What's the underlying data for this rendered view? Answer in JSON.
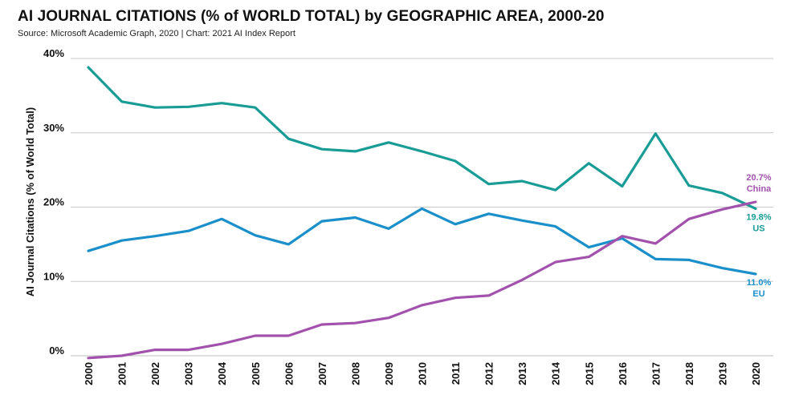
{
  "chart_data": {
    "type": "line",
    "title": "AI JOURNAL CITATIONS (% of WORLD TOTAL) by GEOGRAPHIC AREA, 2000-20",
    "subtitle": "Source: Microsoft Academic Graph, 2020 | Chart: 2021 AI Index Report",
    "xlabel": "",
    "ylabel": "AI Journal Citations (% of World Total)",
    "ylim": [
      0,
      40
    ],
    "yticks": [
      "0%",
      "10%",
      "20%",
      "30%",
      "40%"
    ],
    "grid": true,
    "categories": [
      "2000",
      "2001",
      "2002",
      "2003",
      "2004",
      "2005",
      "2006",
      "2007",
      "2008",
      "2009",
      "2010",
      "2011",
      "2012",
      "2013",
      "2014",
      "2015",
      "2016",
      "2017",
      "2018",
      "2019",
      "2020"
    ],
    "series": [
      {
        "name": "US",
        "color": "#1a9c96",
        "end_value_label": "19.8%",
        "values": [
          38.8,
          34.2,
          33.4,
          33.5,
          34.0,
          33.4,
          29.2,
          27.8,
          27.5,
          28.7,
          27.5,
          26.2,
          23.1,
          23.5,
          22.3,
          25.9,
          22.8,
          29.9,
          22.9,
          21.9,
          19.8
        ]
      },
      {
        "name": "EU",
        "color": "#1a8fca",
        "end_value_label": "11.0%",
        "values": [
          14.1,
          15.5,
          16.1,
          16.8,
          18.4,
          16.2,
          15.0,
          18.1,
          18.6,
          17.1,
          19.8,
          17.7,
          19.1,
          18.2,
          17.4,
          14.6,
          15.8,
          13.0,
          12.9,
          11.8,
          11.0
        ]
      },
      {
        "name": "China",
        "color": "#a252ad",
        "end_value_label": "20.7%",
        "values": [
          -0.3,
          0.0,
          0.8,
          0.8,
          1.6,
          2.7,
          2.7,
          4.2,
          4.4,
          5.1,
          6.8,
          7.8,
          8.1,
          10.2,
          12.6,
          13.3,
          16.1,
          15.1,
          18.4,
          19.7,
          20.7
        ]
      }
    ]
  }
}
